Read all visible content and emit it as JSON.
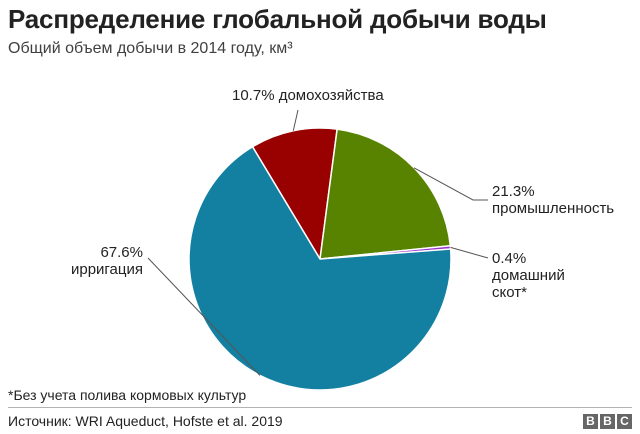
{
  "chart_data": {
    "type": "pie",
    "title": "Распределение глобальной добычи воды",
    "subtitle": "Общий объем добычи в 2014 году, км³",
    "slices": [
      {
        "label_lines": [
          "10.7% домохозяйства"
        ],
        "value": 10.7,
        "color": "#990000"
      },
      {
        "label_lines": [
          "21.3%",
          "промышленность"
        ],
        "value": 21.3,
        "color": "#588300"
      },
      {
        "label_lines": [
          "0.4%",
          "домашний",
          "скот*"
        ],
        "value": 0.4,
        "color": "#9933cc"
      },
      {
        "label_lines": [
          "67.6%",
          "ирригация"
        ],
        "value": 67.6,
        "color": "#1380a1"
      }
    ]
  },
  "footnote": "*Без учета полива кормовых культур",
  "source": "Источник: WRI Aqueduct, Hofste et al. 2019",
  "logo": [
    "B",
    "B",
    "C"
  ]
}
